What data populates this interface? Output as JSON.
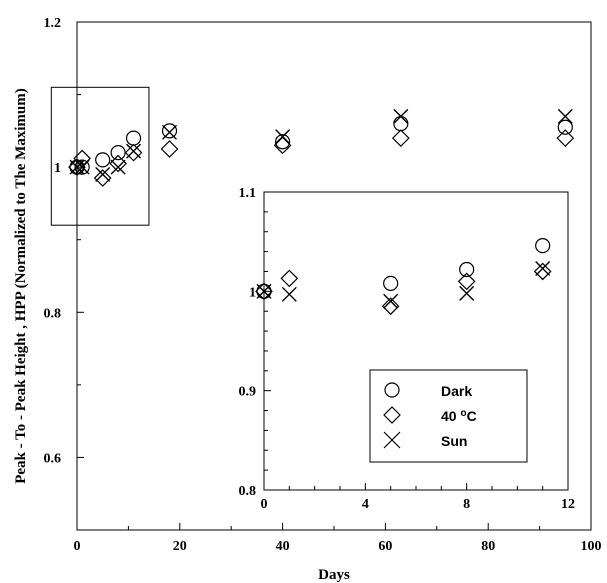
{
  "chart_data": [
    {
      "type": "scatter",
      "role": "main",
      "xlabel": "Days",
      "ylabel": "Peak - To - Peak Height , HPP (Normalized to The Maximum)",
      "xlim": [
        0,
        100
      ],
      "ylim": [
        0.5,
        1.2
      ],
      "xticks": [
        0,
        20,
        40,
        60,
        80,
        100
      ],
      "yticks": [
        {
          "value": 0.6,
          "label": "0.6"
        },
        {
          "value": 0.8,
          "label": "0.8"
        },
        {
          "value": 1.0,
          "label": "1"
        },
        {
          "value": 1.2,
          "label": "1.2"
        }
      ],
      "zoom_box": {
        "x": [
          -5,
          14
        ],
        "y": [
          0.92,
          1.11
        ]
      },
      "series": [
        {
          "name": "Dark",
          "marker": "circle",
          "x": [
            0,
            1,
            5,
            8,
            11,
            18,
            40,
            63,
            95
          ],
          "y": [
            1.0,
            1.0,
            1.01,
            1.02,
            1.04,
            1.05,
            1.035,
            1.06,
            1.055
          ]
        },
        {
          "name": "40 oC",
          "marker": "diamond",
          "x": [
            0,
            1,
            5,
            8,
            11,
            18,
            40,
            63,
            95
          ],
          "y": [
            1.0,
            1.012,
            0.985,
            1.005,
            1.02,
            1.025,
            1.03,
            1.04,
            1.04
          ]
        },
        {
          "name": "Sun",
          "marker": "cross",
          "x": [
            0,
            1,
            5,
            8,
            11,
            18,
            40,
            63,
            95
          ],
          "y": [
            1.0,
            1.0,
            0.99,
            1.0,
            1.022,
            1.048,
            1.042,
            1.07,
            1.07
          ]
        }
      ]
    },
    {
      "type": "scatter",
      "role": "inset",
      "xlim": [
        0,
        12
      ],
      "ylim": [
        0.8,
        1.1
      ],
      "xticks": [
        0,
        4,
        8,
        12
      ],
      "yticks": [
        {
          "value": 0.8,
          "label": "0.8"
        },
        {
          "value": 0.9,
          "label": "0.9"
        },
        {
          "value": 1.0,
          "label": "1"
        },
        {
          "value": 1.1,
          "label": "1.1"
        }
      ],
      "legend": {
        "placement": "bottom-right"
      },
      "series": [
        {
          "name": "Dark",
          "marker": "circle",
          "x": [
            0,
            5,
            8,
            11
          ],
          "y": [
            1.0,
            1.008,
            1.022,
            1.046
          ]
        },
        {
          "name": "40 oC",
          "marker": "diamond",
          "x": [
            0,
            1,
            5,
            8,
            11
          ],
          "y": [
            1.0,
            1.013,
            0.985,
            1.01,
            1.02
          ]
        },
        {
          "name": "Sun",
          "marker": "cross",
          "x": [
            0,
            1,
            5,
            8,
            11
          ],
          "y": [
            1.0,
            0.997,
            0.99,
            0.998,
            1.023
          ]
        }
      ]
    }
  ],
  "legend_labels": {
    "dark": "Dark",
    "forty_c_prefix": "40 ",
    "forty_c_sup": "o",
    "forty_c_suffix": "C",
    "sun": "Sun"
  }
}
